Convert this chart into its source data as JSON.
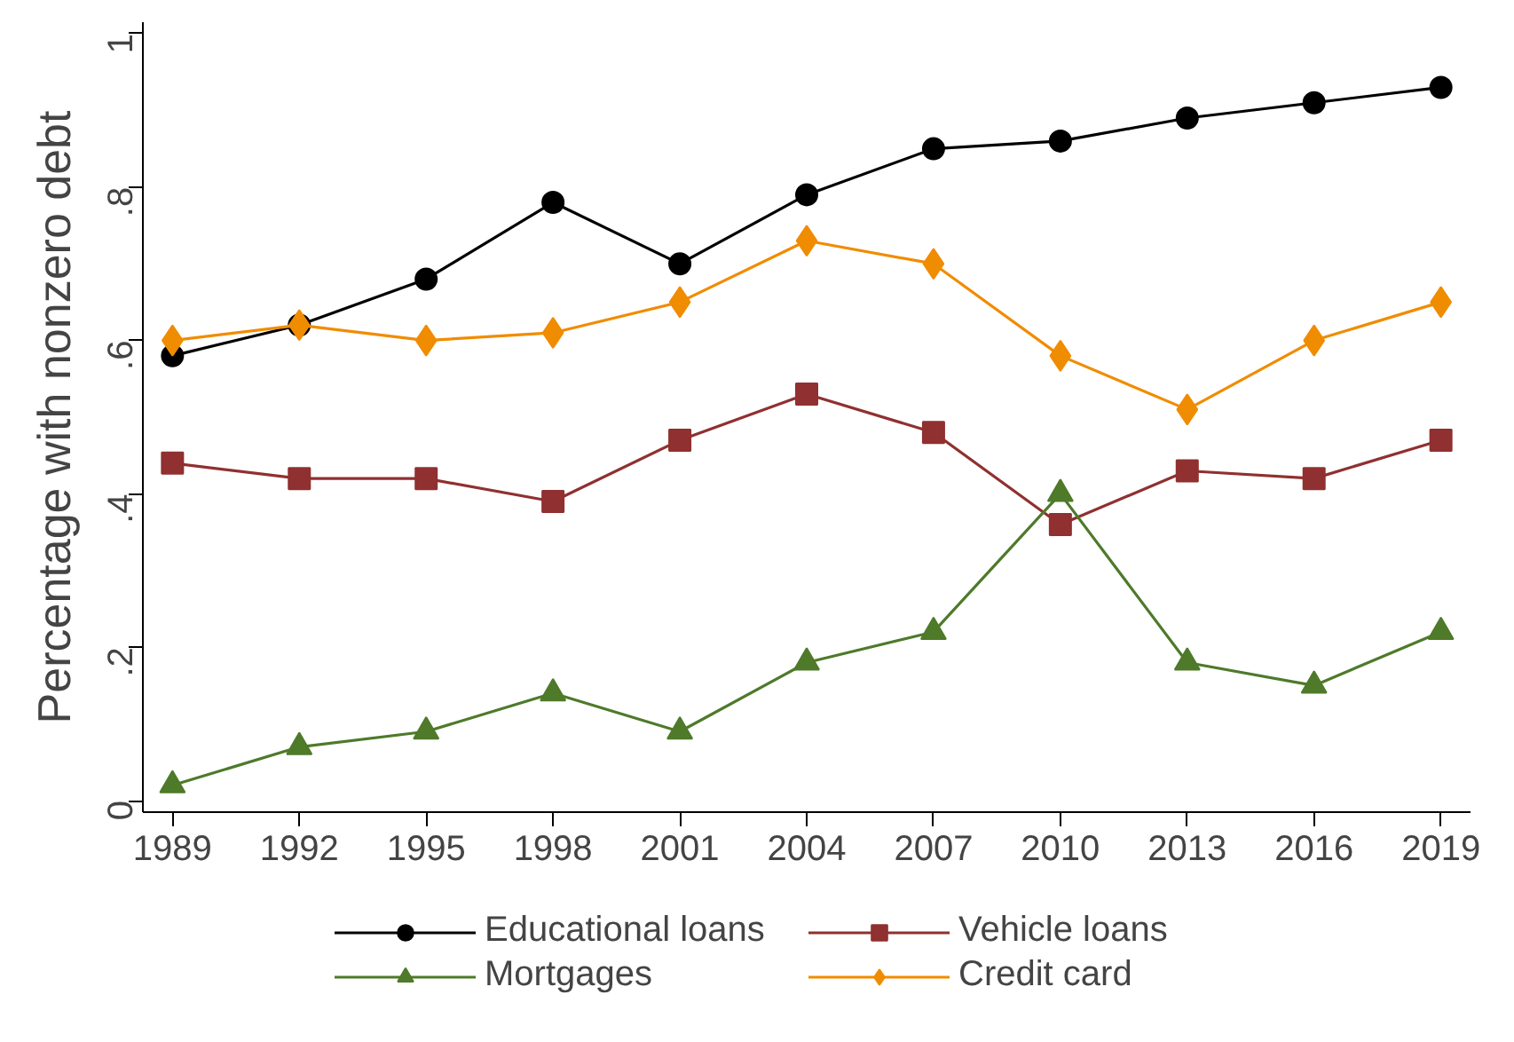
{
  "chart_data": {
    "type": "line",
    "ylabel": "Percentage with nonzero debt",
    "x": [
      1989,
      1992,
      1995,
      1998,
      2001,
      2004,
      2007,
      2010,
      2013,
      2016,
      2019
    ],
    "series": [
      {
        "name": "Educational loans",
        "color": "#000000",
        "marker": "circle",
        "values": [
          0.58,
          0.62,
          0.68,
          0.78,
          0.7,
          0.79,
          0.85,
          0.86,
          0.89,
          0.91,
          0.93
        ]
      },
      {
        "name": "Vehicle loans",
        "color": "#903030",
        "marker": "square",
        "values": [
          0.44,
          0.42,
          0.42,
          0.39,
          0.47,
          0.53,
          0.48,
          0.36,
          0.43,
          0.42,
          0.47
        ]
      },
      {
        "name": "Mortgages",
        "color": "#4e7a2a",
        "marker": "triangle",
        "values": [
          0.02,
          0.07,
          0.09,
          0.14,
          0.09,
          0.18,
          0.22,
          0.4,
          0.18,
          0.15,
          0.22
        ]
      },
      {
        "name": "Credit card",
        "color": "#f08c00",
        "marker": "diamond",
        "values": [
          0.6,
          0.62,
          0.6,
          0.61,
          0.65,
          0.73,
          0.7,
          0.58,
          0.51,
          0.6,
          0.65
        ]
      }
    ],
    "xlim": [
      1988.3,
      2019.7
    ],
    "ylim": [
      -0.015,
      1.015
    ],
    "xticks": [
      1989,
      1992,
      1995,
      1998,
      2001,
      2004,
      2007,
      2010,
      2013,
      2016,
      2019
    ],
    "yticks": [
      0,
      {
        "value": 0.2,
        "label": ".2"
      },
      {
        "value": 0.4,
        "label": ".4"
      },
      {
        "value": 0.6,
        "label": ".6"
      },
      {
        "value": 0.8,
        "label": ".8"
      },
      1
    ],
    "grid": false,
    "legend": "bottom",
    "line_style": "solid"
  }
}
